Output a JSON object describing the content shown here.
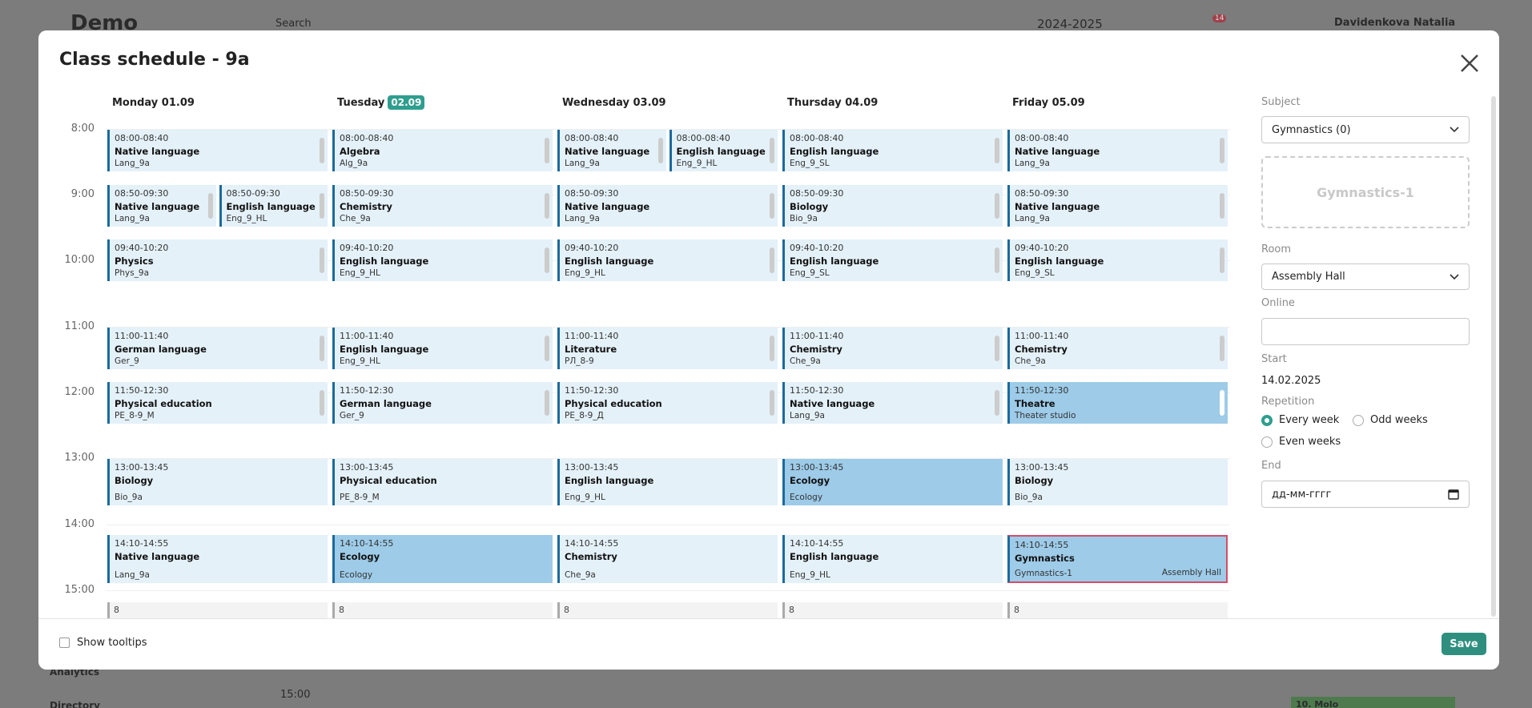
{
  "background": {
    "brand": "Demo",
    "search": "Search",
    "year": "2024-2025",
    "notifications": "14",
    "user": "Davidenkova Natalia",
    "menu": [
      "Analytics",
      "Directory"
    ],
    "time": "15:00",
    "event": "10. Molo"
  },
  "modal": {
    "title": "Class schedule - 9a",
    "hours": [
      "8:00",
      "9:00",
      "10:00",
      "11:00",
      "12:00",
      "13:00",
      "14:00",
      "15:00"
    ],
    "days": [
      {
        "label": "Monday 01.09",
        "overflow": "8",
        "slots": [
          [
            {
              "time": "08:00-08:40",
              "subject": "Native language",
              "group": "Lang_9a"
            }
          ],
          [
            {
              "time": "08:50-09:30",
              "subject": "Native language",
              "group": "Lang_9a"
            },
            {
              "time": "08:50-09:30",
              "subject": "English language",
              "group": "Eng_9_HL"
            }
          ],
          [
            {
              "time": "09:40-10:20",
              "subject": "Physics",
              "group": "Phys_9a"
            }
          ],
          [
            {
              "time": "11:00-11:40",
              "subject": "German language",
              "group": "Ger_9"
            }
          ],
          [
            {
              "time": "11:50-12:30",
              "subject": "Physical education",
              "group": "PE_8-9_M"
            }
          ],
          [
            {
              "time": "13:00-13:45",
              "subject": "Biology",
              "group": "Bio_9a"
            }
          ],
          [
            {
              "time": "14:10-14:55",
              "subject": "Native language",
              "group": "Lang_9a"
            }
          ]
        ]
      },
      {
        "label": "Tuesday",
        "badge": "02.09",
        "overflow": "8",
        "slots": [
          [
            {
              "time": "08:00-08:40",
              "subject": "Algebra",
              "group": "Alg_9a"
            }
          ],
          [
            {
              "time": "08:50-09:30",
              "subject": "Chemistry",
              "group": "Che_9a"
            }
          ],
          [
            {
              "time": "09:40-10:20",
              "subject": "English language",
              "group": "Eng_9_HL"
            }
          ],
          [
            {
              "time": "11:00-11:40",
              "subject": "English language",
              "group": "Eng_9_HL"
            }
          ],
          [
            {
              "time": "11:50-12:30",
              "subject": "German language",
              "group": "Ger_9"
            }
          ],
          [
            {
              "time": "13:00-13:45",
              "subject": "Physical education",
              "group": "PE_8-9_M"
            }
          ],
          [
            {
              "time": "14:10-14:55",
              "subject": "Ecology",
              "group": "Ecology",
              "highlighted": true
            }
          ]
        ]
      },
      {
        "label": "Wednesday 03.09",
        "overflow": "8",
        "slots": [
          [
            {
              "time": "08:00-08:40",
              "subject": "Native language",
              "group": "Lang_9a"
            },
            {
              "time": "08:00-08:40",
              "subject": "English language",
              "group": "Eng_9_HL"
            }
          ],
          [
            {
              "time": "08:50-09:30",
              "subject": "Native language",
              "group": "Lang_9a"
            }
          ],
          [
            {
              "time": "09:40-10:20",
              "subject": "English language",
              "group": "Eng_9_HL"
            }
          ],
          [
            {
              "time": "11:00-11:40",
              "subject": "Literature",
              "group": "РЛ_8-9"
            }
          ],
          [
            {
              "time": "11:50-12:30",
              "subject": "Physical education",
              "group": "PE_8-9_Д"
            }
          ],
          [
            {
              "time": "13:00-13:45",
              "subject": "English language",
              "group": "Eng_9_HL"
            }
          ],
          [
            {
              "time": "14:10-14:55",
              "subject": "Chemistry",
              "group": "Che_9a"
            }
          ]
        ]
      },
      {
        "label": "Thursday 04.09",
        "overflow": "8",
        "slots": [
          [
            {
              "time": "08:00-08:40",
              "subject": "English language",
              "group": "Eng_9_SL"
            }
          ],
          [
            {
              "time": "08:50-09:30",
              "subject": "Biology",
              "group": "Bio_9a"
            }
          ],
          [
            {
              "time": "09:40-10:20",
              "subject": "English language",
              "group": "Eng_9_SL"
            }
          ],
          [
            {
              "time": "11:00-11:40",
              "subject": "Chemistry",
              "group": "Che_9a"
            }
          ],
          [
            {
              "time": "11:50-12:30",
              "subject": "Native language",
              "group": "Lang_9a"
            }
          ],
          [
            {
              "time": "13:00-13:45",
              "subject": "Ecology",
              "group": "Ecology",
              "highlighted": true
            }
          ],
          [
            {
              "time": "14:10-14:55",
              "subject": "English language",
              "group": "Eng_9_HL"
            }
          ]
        ]
      },
      {
        "label": "Friday 05.09",
        "overflow": "8",
        "slots": [
          [
            {
              "time": "08:00-08:40",
              "subject": "Native language",
              "group": "Lang_9a"
            }
          ],
          [
            {
              "time": "08:50-09:30",
              "subject": "Native language",
              "group": "Lang_9a"
            }
          ],
          [
            {
              "time": "09:40-10:20",
              "subject": "English language",
              "group": "Eng_9_SL"
            }
          ],
          [
            {
              "time": "11:00-11:40",
              "subject": "Chemistry",
              "group": "Che_9a"
            }
          ],
          [
            {
              "time": "11:50-12:30",
              "subject": "Theatre",
              "group": "Theater studio",
              "highlighted": true
            }
          ],
          [
            {
              "time": "13:00-13:45",
              "subject": "Biology",
              "group": "Bio_9a"
            }
          ],
          [
            {
              "time": "14:10-14:55",
              "subject": "Gymnastics",
              "group": "Gymnastics-1",
              "room": "Assembly Hall",
              "highlighted": true,
              "selected": true
            }
          ]
        ]
      }
    ],
    "panel": {
      "subject_label": "Subject",
      "subject_value": "Gymnastics (0)",
      "group_chip": "Gymnastics-1",
      "room_label": "Room",
      "room_value": "Assembly Hall",
      "online_label": "Online",
      "start_label": "Start",
      "start_value": "14.02.2025",
      "repetition_label": "Repetition",
      "repetition_options": [
        "Every week",
        "Odd weeks",
        "Even weeks"
      ],
      "repetition_selected": 0,
      "end_label": "End",
      "end_placeholder": "дд-мм-гггг"
    },
    "footer": {
      "tooltips": "Show tooltips",
      "save": "Save"
    }
  }
}
